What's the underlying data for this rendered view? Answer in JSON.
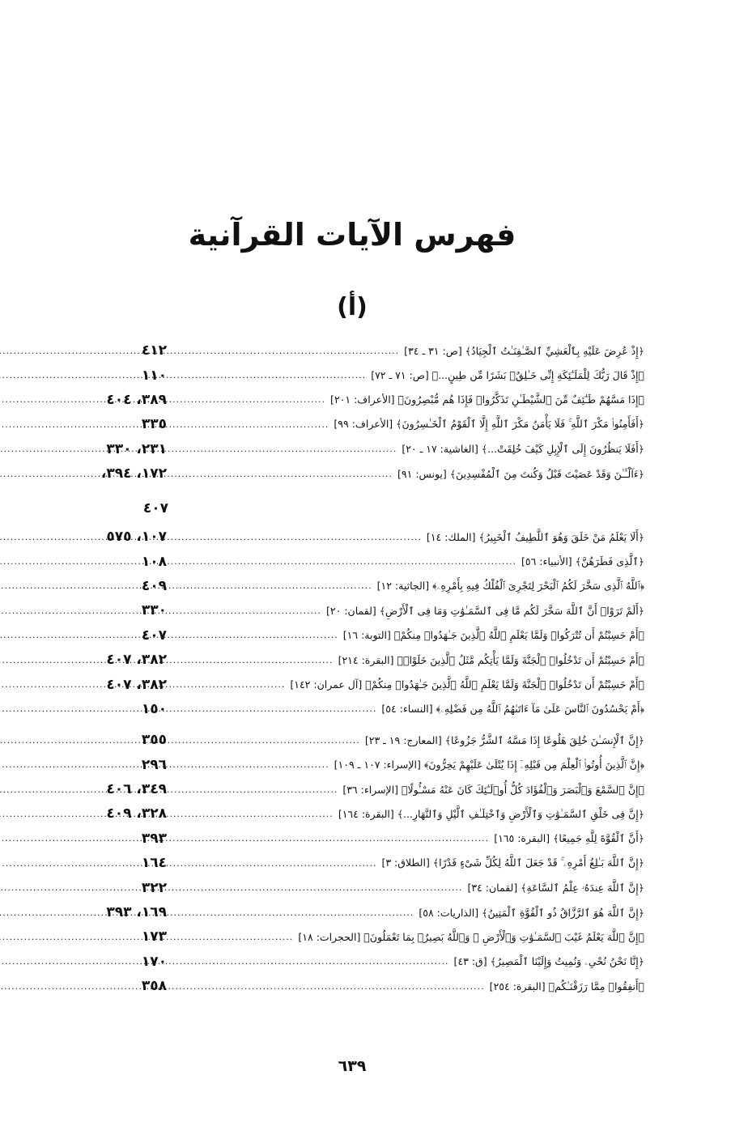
{
  "title": "فهرس الآيات القرآنية",
  "section": "(أ)",
  "entries_a": [
    {
      "verse": "﴿إِذْ عُرِضَ عَلَيْهِ بِٱلْعَشِيِّ ٱلصَّـٰفِنَـٰتُ ٱلْجِيَادُ﴾ [ص: ٣١ ـ ٣٤]",
      "pages": "٤١٢"
    },
    {
      "verse": "﴿إِذْ قَالَ رَبُّكَ لِلْمَلَـٰٓئِكَةِ إِنِّى خَـٰلِقٌۢ بَشَرًا مِّن طِينٍ...﴾ [ص: ٧١ ـ ٧٢]",
      "pages": "١١٠"
    },
    {
      "verse": "﴿إِذَا مَسَّهُمْ طَـٰٓئِفٌ مِّنَ ٱلشَّيْطَـٰنِ تَذَكَّرُوا۟ فَإِذَا هُم مُّبْصِرُونَ﴾ [الأعراف: ٢٠١]",
      "pages": "٣٨٩، ٤٠٤"
    },
    {
      "verse": "﴿أَفَأَمِنُوا۟ مَكْرَ ٱللَّهِ ۚ فَلَا يَأْمَنُ مَكْرَ ٱللَّهِ إِلَّا ٱلْقَوْمُ ٱلْخَـٰسِرُونَ﴾ [الأعراف: ٩٩]",
      "pages": "٣٣٥"
    },
    {
      "verse": "﴿أَفَلَا يَنظُرُونَ إِلَى ٱلْإِبِلِ كَيْفَ خُلِقَتْ...﴾ [الغاشية: ١٧ ـ ٢٠]",
      "pages": "٢٣١، ٣٣٠"
    },
    {
      "verse": "﴿ءَآلْـَٔـٰنَ وَقَدْ عَصَيْتَ قَبْلُ وَكُنتَ مِنَ ٱلْمُفْسِدِينَ﴾ [يونس: ٩١]",
      "pages": "١٧٢، ٣٩٤،"
    }
  ],
  "continuation": "٤٠٧",
  "entries_b": [
    {
      "verse": "﴿أَلَا يَعْلَمُ مَنْ خَلَقَ وَهُوَ ٱللَّطِيفُ ٱلْخَبِيرُ﴾ [الملك: ١٤]",
      "pages": "١٠٧، ٥٧٥"
    },
    {
      "verse": "﴿ٱلَّذِى فَطَرَهُنَّ﴾ [الأنبياء: ٥٦]",
      "pages": "١٠٨"
    },
    {
      "verse": "﴿ٱللَّهُ ٱلَّذِى سَخَّرَ لَكُمُ ٱلْبَحْرَ لِتَجْرِىَ ٱلْفُلْكُ فِيهِ بِأَمْرِهِۦ﴾ [الجاثية: ١٢]",
      "pages": "٤٠٩"
    },
    {
      "verse": "﴿أَلَمْ تَرَوْا۟ أَنَّ ٱللَّهَ سَخَّرَ لَكُم مَّا فِى ٱلسَّمَـٰوَٰتِ وَمَا فِى ٱلْأَرْضِ﴾ [لقمان: ٢٠]",
      "pages": "٣٣٠"
    },
    {
      "verse": "﴿أَمْ حَسِبْتُمْ أَن تُتْرَكُوا۟ وَلَمَّا يَعْلَمِ ٱللَّهُ ٱلَّذِينَ جَـٰهَدُوا۟ مِنكُمْ﴾ [التوبة: ١٦]",
      "pages": "٤٠٧"
    },
    {
      "verse": "﴿أَمْ حَسِبْتُمْ أَن تَدْخُلُوا۟ ٱلْجَنَّةَ وَلَمَّا يَأْتِكُم مَّثَلُ ٱلَّذِينَ خَلَوْا۟﴾ [البقرة: ٢١٤]",
      "pages": "٣٨٢، ٤٠٧"
    },
    {
      "verse": "﴿أَمْ حَسِبْتُمْ أَن تَدْخُلُوا۟ ٱلْجَنَّةَ وَلَمَّا يَعْلَمِ ٱللَّهُ ٱلَّذِينَ جَـٰهَدُوا۟ مِنكُمْ﴾ [آل عمران: ١٤٢]",
      "pages": "٣٨٢، ٤٠٧"
    },
    {
      "verse": "﴿أَمْ يَحْسُدُونَ ٱلنَّاسَ عَلَىٰ مَآ ءَاتَىٰهُمُ ٱللَّهُ مِن فَضْلِهِۦ﴾ [النساء: ٥٤]",
      "pages": "١٥٠"
    },
    {
      "verse": "﴿إِنَّ ٱلْإِنسَـٰنَ خُلِقَ هَلُوعًا إِذَا مَسَّهُ ٱلشَّرُّ جَزُوعًا﴾ [المعارج: ١٩ ـ ٢٣]",
      "pages": "٣٥٥"
    },
    {
      "verse": "﴿إِنَّ ٱلَّذِينَ أُوتُوا۟ ٱلْعِلْمَ مِن قَبْلِهِۦٓ إِذَا يُتْلَىٰ عَلَيْهِمْ يَخِرُّونَ﴾ [الإسراء: ١٠٧ ـ ١٠٩]",
      "pages": "٢٩٦"
    },
    {
      "verse": "﴿إِنَّ ٱلسَّمْعَ وَٱلْبَصَرَ وَٱلْفُؤَادَ كُلُّ أُو۟لَـٰٓئِكَ كَانَ عَنْهُ مَسْـُٔولًا﴾ [الإسراء: ٣٦]",
      "pages": "٣٤٩، ٤٠٦"
    },
    {
      "verse": "﴿إِنَّ فِى خَلْقِ ٱلسَّمَـٰوَٰتِ وَٱلْأَرْضِ وَٱخْتِلَـٰفِ ٱلَّيْلِ وَٱلنَّهَارِ...﴾ [البقرة: ١٦٤]",
      "pages": "٣٢٨، ٤٠٩"
    },
    {
      "verse": "﴿أَنَّ ٱلْقُوَّةَ لِلَّهِ جَمِيعًا﴾ [البقرة: ١٦٥]",
      "pages": "٣٩٣"
    },
    {
      "verse": "﴿إِنَّ ٱللَّهَ بَـٰلِغُ أَمْرِهِۦ ۚ قَدْ جَعَلَ ٱللَّهُ لِكُلِّ شَىْءٍ قَدْرًا﴾ [الطلاق: ٣]",
      "pages": "١٦٤"
    },
    {
      "verse": "﴿إِنَّ ٱللَّهَ عِندَهُۥ عِلْمُ ٱلسَّاعَةِ﴾ [لقمان: ٣٤]",
      "pages": "٣٢٢"
    },
    {
      "verse": "﴿إِنَّ ٱللَّهَ هُوَ ٱلرَّزَّاقُ ذُو ٱلْقُوَّةِ ٱلْمَتِينُ﴾ [الذاريات: ٥٨]",
      "pages": "١٦٩، ٣٩٣"
    },
    {
      "verse": "﴿إِنَّ ٱللَّهَ يَعْلَمُ غَيْبَ ٱلسَّمَـٰوَٰتِ وَٱلْأَرْضِ ۚ وَٱللَّهُ بَصِيرٌۢ بِمَا تَعْمَلُونَ﴾ [الحجرات: ١٨]",
      "pages": "١٧٣"
    },
    {
      "verse": "﴿إِنَّا نَحْنُ نُحْىِۦ وَنُمِيتُ وَإِلَيْنَا ٱلْمَصِيرُ﴾ [ق: ٤٣]",
      "pages": "١٧٠"
    },
    {
      "verse": "﴿أَنفِقُوا۟ مِمَّا رَزَقْنَـٰكُم﴾ [البقرة: ٢٥٤]",
      "pages": "٣٥٨"
    }
  ],
  "page_number": "٦٣٩"
}
